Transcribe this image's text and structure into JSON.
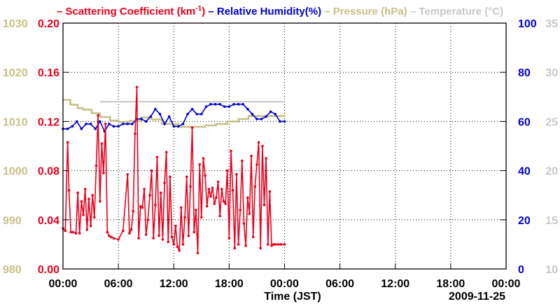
{
  "chart_data": {
    "type": "line",
    "title": "",
    "legend": [
      {
        "name": "Scattering Coefficient",
        "unit_prefix": "(km",
        "unit_sup": "-1",
        "unit_suffix": ")",
        "color": "#e8001c"
      },
      {
        "name": "Relative Humidity(%)",
        "color": "#0000d0"
      },
      {
        "name": "Pressure (hPa)",
        "color": "#c8c088"
      },
      {
        "name": "Temperature (°C)",
        "color": "#c8c8c8"
      }
    ],
    "xlabel": "Time (JST)",
    "date_label": "2009-11-25",
    "x_ticks": [
      "00:00",
      "06:00",
      "12:00",
      "18:00",
      "00:00",
      "06:00",
      "12:00",
      "18:00",
      "00:00"
    ],
    "x_range_hours": [
      0,
      48
    ],
    "axes": {
      "scattering": {
        "range": [
          0.0,
          0.2
        ],
        "ticks": [
          "0.00",
          "0.04",
          "0.08",
          "0.12",
          "0.16",
          "0.20"
        ],
        "color": "#e8001c"
      },
      "pressure": {
        "range": [
          980,
          1030
        ],
        "ticks": [
          "980",
          "990",
          "1000",
          "1010",
          "1020",
          "1030"
        ],
        "color": "#c8c088"
      },
      "humidity": {
        "range": [
          0,
          100
        ],
        "ticks": [
          "0",
          "20",
          "40",
          "60",
          "80",
          "100"
        ],
        "color": "#0000d0"
      },
      "temperature": {
        "range": [
          10,
          35
        ],
        "ticks": [
          "10",
          "15",
          "20",
          "25",
          "30",
          "35"
        ],
        "color": "#c8c8c8"
      }
    },
    "series": [
      {
        "name": "Pressure (hPa)",
        "axis": "pressure",
        "style": "step",
        "color": "#c8c088",
        "x": [
          0,
          0.8,
          1.6,
          2.2,
          3.1,
          4.0,
          5.1,
          6.0,
          7.2,
          8.4,
          9.6,
          10.7,
          12.5,
          15.4,
          16.6,
          17.8,
          19.0,
          20.1,
          24.0
        ],
        "y": [
          1014.4,
          1013.4,
          1012.7,
          1012.4,
          1011.7,
          1010.9,
          1010.2,
          1009.9,
          1010.1,
          1010.8,
          1010.4,
          1009.5,
          1008.9,
          1009.2,
          1009.5,
          1010.0,
          1010.5,
          1011.1,
          1011.4
        ]
      },
      {
        "name": "Temperature (°C)",
        "axis": "temperature",
        "style": "line",
        "color": "#c8c8c8",
        "x": [
          4.0,
          24.0
        ],
        "y": [
          27.0,
          27.0
        ]
      },
      {
        "name": "Relative Humidity(%)",
        "axis": "humidity",
        "style": "line",
        "color": "#0000d0",
        "x": [
          0,
          0.5,
          1.0,
          1.5,
          2.0,
          2.5,
          3.0,
          3.5,
          4.0,
          4.5,
          5.0,
          5.5,
          6.0,
          6.5,
          7.0,
          7.5,
          8.0,
          8.5,
          9.0,
          9.5,
          10.0,
          10.5,
          11.0,
          11.5,
          12.0,
          12.5,
          13.0,
          13.5,
          14.0,
          14.5,
          15.0,
          15.5,
          16.0,
          16.5,
          17.0,
          17.5,
          18.0,
          18.5,
          19.0,
          19.5,
          20.0,
          20.5,
          21.0,
          21.5,
          22.0,
          22.5,
          23.0,
          23.5,
          24.0
        ],
        "y": [
          57,
          57,
          58,
          60,
          57,
          59,
          59,
          57,
          60,
          56,
          59,
          58,
          58,
          59,
          59,
          59,
          61,
          61,
          60,
          62,
          65,
          63,
          59,
          62,
          58,
          58,
          59,
          63,
          65,
          63,
          63,
          66,
          67,
          67,
          67,
          66,
          66,
          67,
          67,
          67,
          65,
          63,
          61,
          61,
          62,
          64,
          63,
          60,
          60
        ]
      },
      {
        "name": "Scattering Coefficient",
        "axis": "scattering",
        "style": "line",
        "color": "#e8001c",
        "x": [
          0,
          0.25,
          0.5,
          0.65,
          0.85,
          1.1,
          1.4,
          1.6,
          1.8,
          2.0,
          2.2,
          2.4,
          2.6,
          2.8,
          3.0,
          3.2,
          3.4,
          3.6,
          3.8,
          4.0,
          4.2,
          4.4,
          4.6,
          4.8,
          5.0,
          5.2,
          5.5,
          6.0,
          6.5,
          7.0,
          7.2,
          7.4,
          7.6,
          7.8,
          8.0,
          8.2,
          8.4,
          8.6,
          8.8,
          9.0,
          9.2,
          9.4,
          9.6,
          9.8,
          10.0,
          10.2,
          10.4,
          10.6,
          10.8,
          11.0,
          11.2,
          11.4,
          11.6,
          11.8,
          12.0,
          12.2,
          12.4,
          12.6,
          12.8,
          13.0,
          13.2,
          13.4,
          13.6,
          13.8,
          14.0,
          14.2,
          14.4,
          14.6,
          14.8,
          15.0,
          15.2,
          15.4,
          15.6,
          15.8,
          16.0,
          16.2,
          16.4,
          16.6,
          16.8,
          17.0,
          17.2,
          17.4,
          17.6,
          17.8,
          18.0,
          18.2,
          18.4,
          18.6,
          18.8,
          19.0,
          19.2,
          19.4,
          19.6,
          19.8,
          20.0,
          20.2,
          20.4,
          20.6,
          20.8,
          21.0,
          21.2,
          21.4,
          21.6,
          21.8,
          22.0,
          22.2,
          22.4,
          22.6,
          22.8,
          23.0,
          23.3,
          23.6,
          24.0
        ],
        "y": [
          0.033,
          0.031,
          0.103,
          0.064,
          0.03,
          0.03,
          0.029,
          0.062,
          0.029,
          0.055,
          0.044,
          0.065,
          0.032,
          0.057,
          0.035,
          0.06,
          0.042,
          0.084,
          0.125,
          0.055,
          0.102,
          0.078,
          0.118,
          0.03,
          0.027,
          0.026,
          0.025,
          0.024,
          0.031,
          0.077,
          0.029,
          0.032,
          0.047,
          0.11,
          0.148,
          0.025,
          0.051,
          0.05,
          0.065,
          0.028,
          0.04,
          0.06,
          0.08,
          0.025,
          0.052,
          0.091,
          0.027,
          0.062,
          0.024,
          0.07,
          0.095,
          0.022,
          0.075,
          0.026,
          0.02,
          0.035,
          0.018,
          0.015,
          0.05,
          0.02,
          0.042,
          0.075,
          0.027,
          0.067,
          0.115,
          0.03,
          0.048,
          0.013,
          0.085,
          0.042,
          0.09,
          0.076,
          0.051,
          0.065,
          0.059,
          0.066,
          0.053,
          0.058,
          0.071,
          0.043,
          0.065,
          0.055,
          0.053,
          0.08,
          0.025,
          0.096,
          0.064,
          0.017,
          0.077,
          0.02,
          0.048,
          0.088,
          0.037,
          0.019,
          0.058,
          0.045,
          0.092,
          0.026,
          0.067,
          0.085,
          0.103,
          0.017,
          0.1,
          0.052,
          0.09,
          0.02,
          0.063,
          0.019,
          0.02,
          0.02,
          0.02,
          0.02,
          0.02
        ]
      }
    ]
  }
}
